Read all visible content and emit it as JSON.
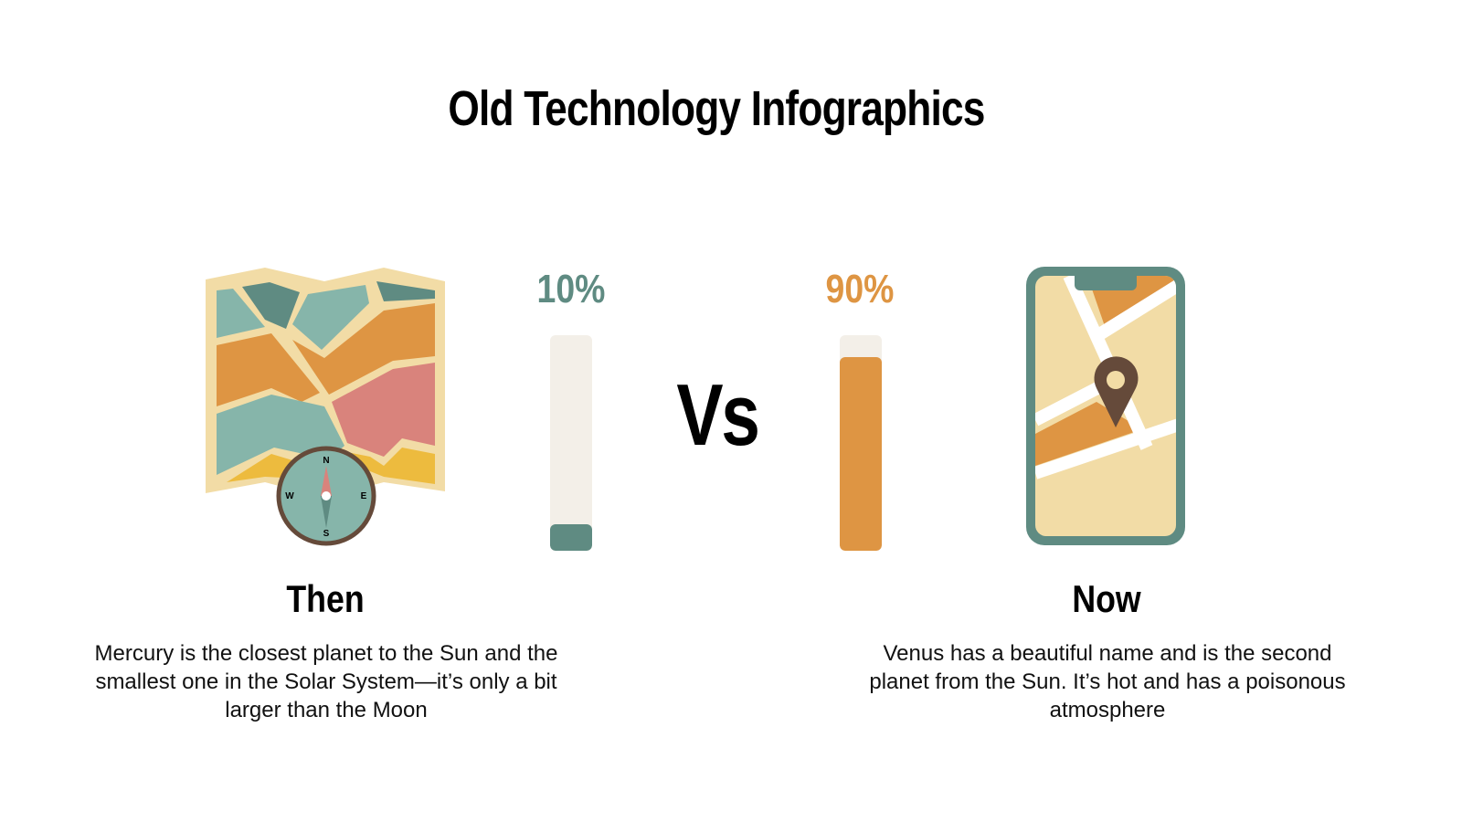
{
  "title": "Old Technology Infographics",
  "vs_label": "Vs",
  "colors": {
    "teal": "#5f8b82",
    "light_teal": "#86b5aa",
    "orange": "#de9543",
    "pink": "#d9837c",
    "yellow": "#edbb3e",
    "beige": "#f2dca6",
    "track": "#f3efe8",
    "brown": "#654a3a"
  },
  "then": {
    "icon": "folded-map-with-compass-icon",
    "percent_label": "10%",
    "percent": 10,
    "label": "Then",
    "description": "Mercury is the closest planet to the Sun and the smallest one in the Solar System—it’s only a bit larger than the Moon",
    "compass": {
      "n": "N",
      "e": "E",
      "s": "S",
      "w": "W"
    }
  },
  "now": {
    "icon": "smartphone-map-pin-icon",
    "percent_label": "90%",
    "percent": 90,
    "label": "Now",
    "description": "Venus has a beautiful name and is the second planet from the Sun. It’s hot and has a poisonous atmosphere"
  }
}
